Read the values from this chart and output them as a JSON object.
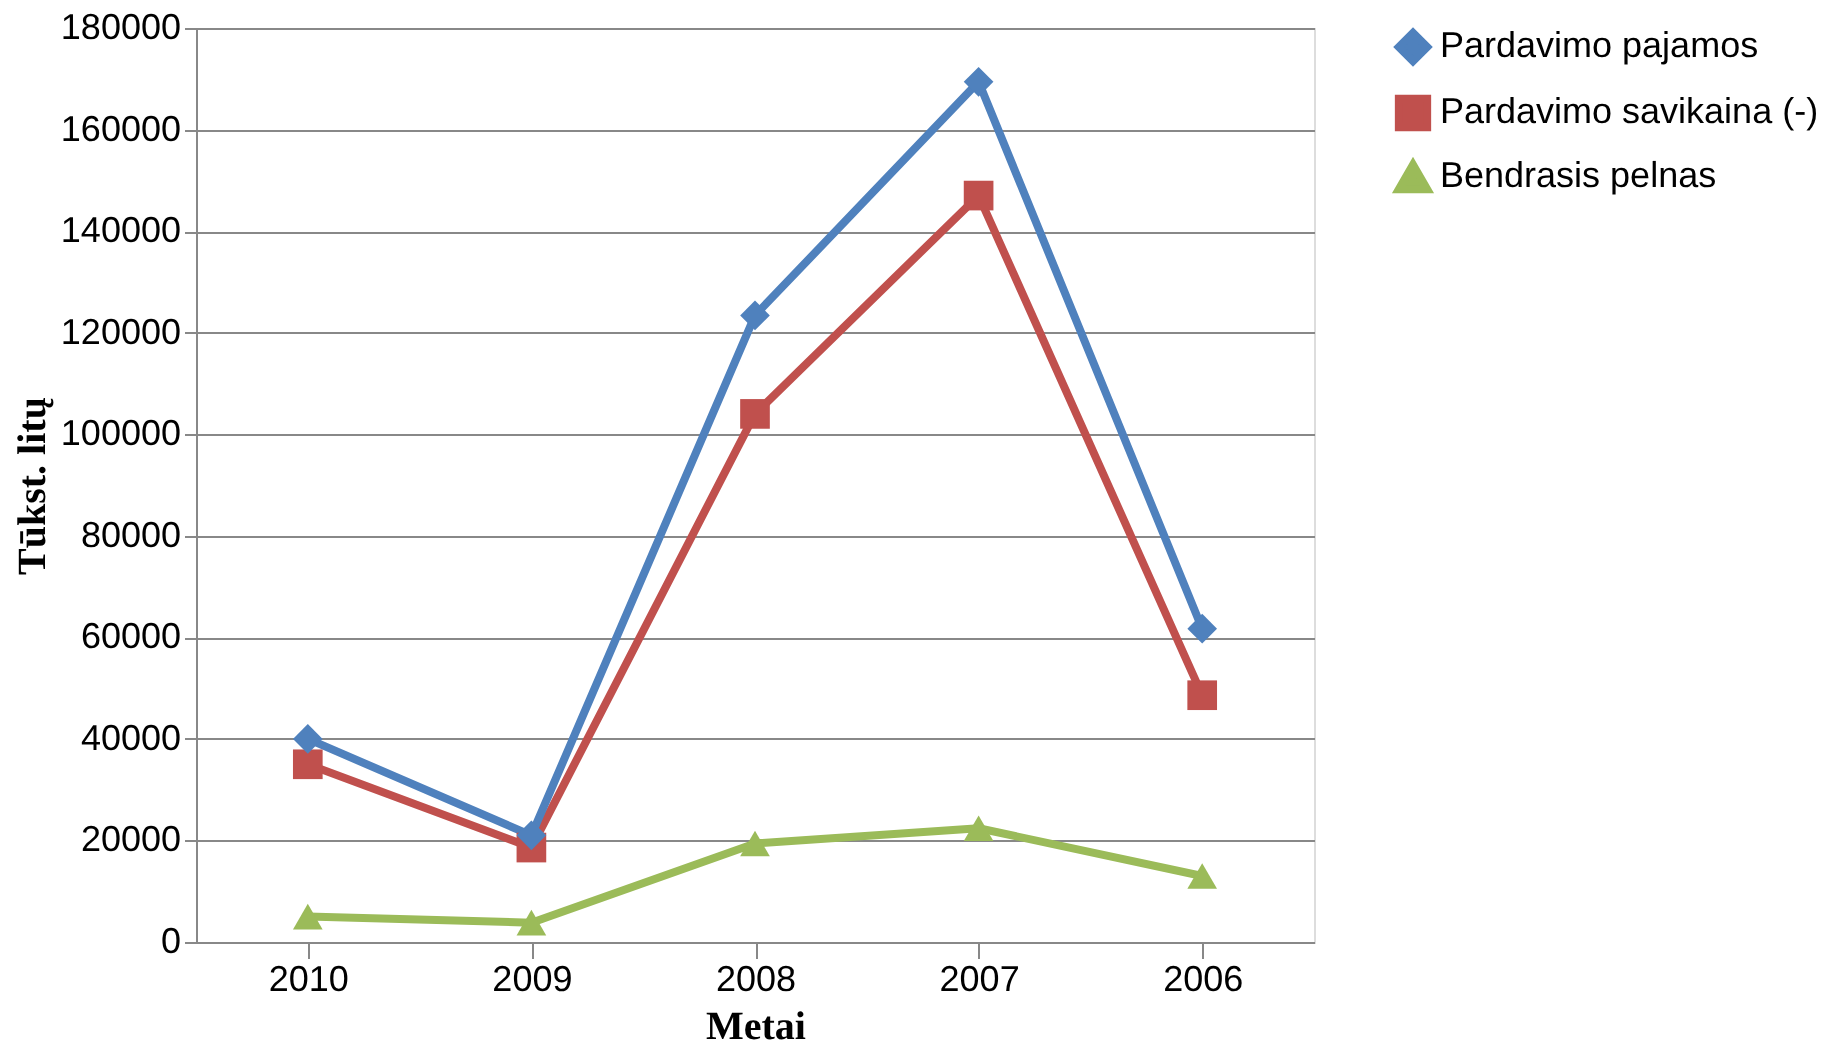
{
  "chart_data": {
    "type": "line",
    "xlabel": "Metai",
    "ylabel": "Tūkst. litų",
    "categories": [
      "2010",
      "2009",
      "2008",
      "2007",
      "2006"
    ],
    "series": [
      {
        "name": "Pardavimo pajamos",
        "color": "#4f81bd",
        "marker": "diamond",
        "values": [
          40000,
          21000,
          123400,
          169400,
          61700
        ]
      },
      {
        "name": "Pardavimo savikaina (-)",
        "color": "#c0504d",
        "marker": "square",
        "values": [
          35000,
          18600,
          104000,
          147000,
          48600
        ]
      },
      {
        "name": "Bendrasis pelnas",
        "color": "#9bbb59",
        "marker": "triangle",
        "values": [
          5000,
          3800,
          19400,
          22400,
          13000
        ]
      }
    ],
    "ylim": [
      0,
      180000
    ],
    "yticks": [
      0,
      20000,
      40000,
      60000,
      80000,
      100000,
      120000,
      140000,
      160000,
      180000
    ],
    "grid": "y",
    "legend": "right",
    "line_style": "solid"
  }
}
